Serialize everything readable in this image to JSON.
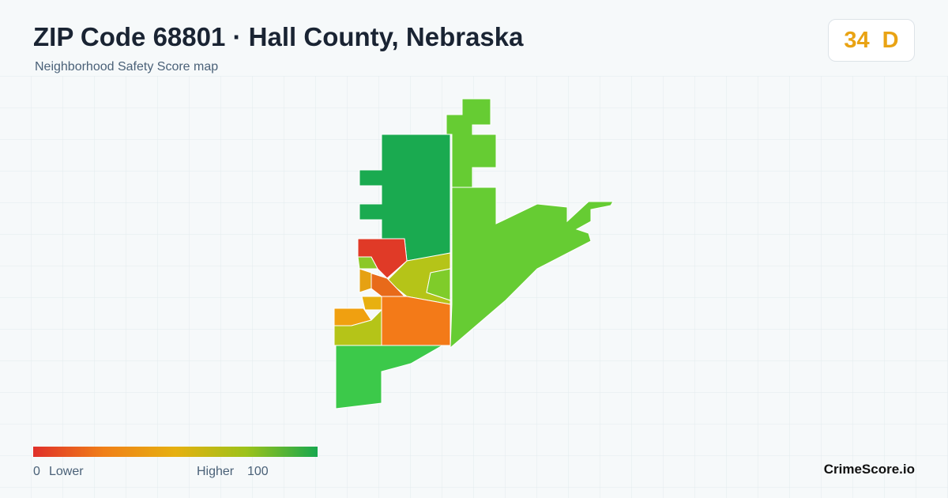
{
  "header": {
    "title": "ZIP Code 68801 · Hall County, Nebraska",
    "subtitle": "Neighborhood Safety Score map"
  },
  "score": {
    "value": 34,
    "grade": "D"
  },
  "legend": {
    "min": 0,
    "min_label": "Lower",
    "max_label": "Higher",
    "max": 100
  },
  "brand": "CrimeScore.io"
}
